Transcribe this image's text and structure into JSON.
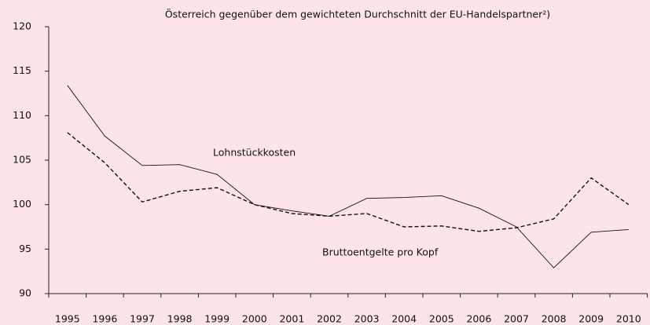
{
  "chart_data": {
    "type": "line",
    "title": "Österreich gegenüber dem gewichteten Durchschnitt der EU-Handelspartner²)",
    "categories": [
      "1995",
      "1996",
      "1997",
      "1998",
      "1999",
      "2000",
      "2001",
      "2002",
      "2003",
      "2004",
      "2005",
      "2006",
      "2007",
      "2008",
      "2009",
      "2010"
    ],
    "series": [
      {
        "name": "Lohnstückkosten",
        "color": "#111111",
        "style": "solid",
        "values": [
          113.4,
          107.7,
          104.4,
          104.5,
          103.4,
          100.0,
          99.3,
          98.7,
          100.7,
          100.8,
          101.0,
          99.6,
          97.5,
          92.9,
          96.9,
          97.2
        ]
      },
      {
        "name": "Bruttoentgelte pro Kopf",
        "color": "#111111",
        "style": "dashed",
        "values": [
          108.1,
          104.7,
          100.3,
          101.5,
          101.9,
          100.0,
          99.0,
          98.7,
          99.0,
          97.5,
          97.6,
          97.0,
          97.4,
          98.4,
          103.0,
          100.0
        ]
      }
    ],
    "ylim": [
      90,
      120
    ],
    "yticks": [
      90,
      95,
      100,
      105,
      110,
      115,
      120
    ],
    "grid": false
  }
}
